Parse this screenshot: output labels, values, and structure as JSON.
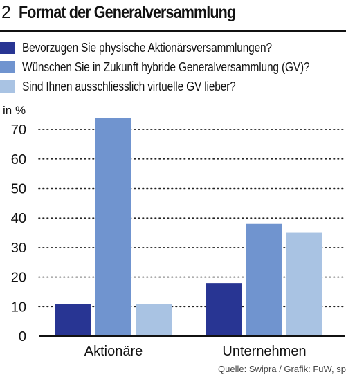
{
  "figure": {
    "number": "2",
    "title": "Format der Generalversammlung"
  },
  "source": "Quelle: Swipra / Grafik: FuW, sp",
  "colors": {
    "series_1": "#283593",
    "series_2": "#7094cf",
    "series_3": "#a9c3e3",
    "axis": "#111111",
    "grid": "#222222"
  },
  "chart_data": {
    "type": "bar",
    "title": "Format der Generalversammlung",
    "ylabel": "in %",
    "xlabel": "",
    "categories": [
      "Aktionäre",
      "Unternehmen"
    ],
    "series": [
      {
        "name": "Bevorzugen Sie physische Aktionärsversammlungen?",
        "values": [
          11,
          18
        ]
      },
      {
        "name": "Wünschen Sie in Zukunft hybride Generalversammlung (GV)?",
        "values": [
          74,
          38
        ]
      },
      {
        "name": "Sind Ihnen ausschliesslich virtuelle GV lieber?",
        "values": [
          11,
          35
        ]
      }
    ],
    "ylim": [
      0,
      75
    ],
    "yticks": [
      0,
      10,
      20,
      30,
      40,
      50,
      60,
      70
    ],
    "grid": "dotted horizontal",
    "legend_position": "top"
  }
}
